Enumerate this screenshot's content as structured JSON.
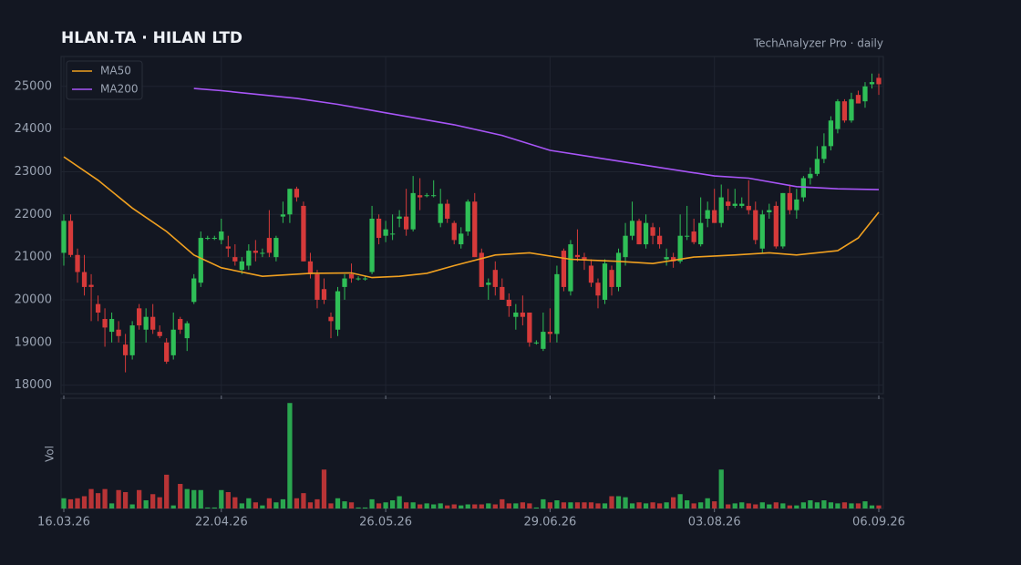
{
  "chart_data": {
    "type": "candlestick",
    "title": "HLAN.TA  ·  HILAN LTD",
    "subtitle": "TechAnalyzer Pro · daily",
    "volume_label": "Vol",
    "up_color": "#2fbf57",
    "down_color": "#d63a3a",
    "xlim": [
      0,
      119
    ],
    "xticks": [
      {
        "value": 0,
        "label": "16.03.26"
      },
      {
        "value": 23,
        "label": "22.04.26"
      },
      {
        "value": 47,
        "label": "26.05.26"
      },
      {
        "value": 71,
        "label": "29.06.26"
      },
      {
        "value": 95,
        "label": "03.08.26"
      },
      {
        "value": 119,
        "label": "06.09.26"
      }
    ],
    "ylim": [
      17800,
      25700
    ],
    "yticks": [
      18000,
      19000,
      20000,
      21000,
      22000,
      23000,
      24000,
      25000
    ],
    "grid": true,
    "legend": "top-left",
    "volume_ylim": [
      0,
      105
    ],
    "ohlc": [
      [
        21100,
        22000,
        20800,
        21850
      ],
      [
        21850,
        22000,
        21000,
        21050
      ],
      [
        21050,
        21200,
        20400,
        20650
      ],
      [
        20650,
        21050,
        20100,
        20300
      ],
      [
        20350,
        20600,
        19500,
        20300
      ],
      [
        19900,
        20100,
        19500,
        19700
      ],
      [
        19550,
        19800,
        18900,
        19350
      ],
      [
        19250,
        19700,
        19000,
        19550
      ],
      [
        19300,
        19500,
        19000,
        19150
      ],
      [
        18950,
        19200,
        18300,
        18700
      ],
      [
        18700,
        19500,
        18600,
        19400
      ],
      [
        19800,
        19900,
        19300,
        19400
      ],
      [
        19300,
        19800,
        19000,
        19600
      ],
      [
        19600,
        19900,
        19200,
        19300
      ],
      [
        19250,
        19400,
        19100,
        19150
      ],
      [
        19000,
        19100,
        18500,
        18550
      ],
      [
        18700,
        19700,
        18600,
        19300
      ],
      [
        19550,
        19600,
        19200,
        19300
      ],
      [
        19100,
        19500,
        18800,
        19450
      ],
      [
        19950,
        20600,
        19900,
        20500
      ],
      [
        20400,
        21600,
        20300,
        21450
      ],
      [
        21450,
        21500,
        21400,
        21450
      ],
      [
        21450,
        21500,
        21400,
        21450
      ],
      [
        21400,
        21900,
        21300,
        21600
      ],
      [
        21250,
        21500,
        21000,
        21200
      ],
      [
        21000,
        21300,
        20800,
        20900
      ],
      [
        20700,
        21000,
        20600,
        20900
      ],
      [
        20800,
        21300,
        20700,
        21150
      ],
      [
        21150,
        21400,
        20900,
        21100
      ],
      [
        21100,
        21200,
        21000,
        21100
      ],
      [
        21450,
        22100,
        21000,
        21100
      ],
      [
        21000,
        21500,
        20900,
        21450
      ],
      [
        21950,
        22300,
        21800,
        22000
      ],
      [
        22000,
        22600,
        21800,
        22600
      ],
      [
        22600,
        22650,
        22300,
        22400
      ],
      [
        22200,
        22300,
        20900,
        20900
      ],
      [
        20900,
        21100,
        20500,
        20600
      ],
      [
        20600,
        20700,
        19800,
        20000
      ],
      [
        20250,
        20500,
        19900,
        20000
      ],
      [
        19600,
        19700,
        19100,
        19500
      ],
      [
        19300,
        20300,
        19150,
        20200
      ],
      [
        20300,
        20600,
        20000,
        20500
      ],
      [
        20600,
        20850,
        20400,
        20500
      ],
      [
        20500,
        20550,
        20450,
        20500
      ],
      [
        20500,
        20550,
        20450,
        20500
      ],
      [
        20650,
        22200,
        20600,
        21900
      ],
      [
        21900,
        22000,
        21300,
        21450
      ],
      [
        21500,
        21850,
        21350,
        21650
      ],
      [
        21550,
        22000,
        21400,
        21550
      ],
      [
        21900,
        22100,
        21700,
        21950
      ],
      [
        21950,
        22600,
        21500,
        21650
      ],
      [
        21650,
        22900,
        21600,
        22500
      ],
      [
        22450,
        22850,
        22100,
        22400
      ],
      [
        22450,
        22500,
        22400,
        22450
      ],
      [
        22450,
        22800,
        22400,
        22450
      ],
      [
        21800,
        22600,
        21700,
        22250
      ],
      [
        22250,
        22350,
        21800,
        21900
      ],
      [
        21800,
        21850,
        21300,
        21400
      ],
      [
        21300,
        21700,
        21200,
        21550
      ],
      [
        21600,
        22350,
        21500,
        22300
      ],
      [
        22300,
        22500,
        21000,
        21000
      ],
      [
        21100,
        21200,
        20300,
        20300
      ],
      [
        20350,
        20500,
        20000,
        20400
      ],
      [
        20700,
        20900,
        20100,
        20300
      ],
      [
        20300,
        20500,
        20000,
        20000
      ],
      [
        20000,
        20150,
        19600,
        19850
      ],
      [
        19600,
        19900,
        19300,
        19700
      ],
      [
        19700,
        20100,
        19400,
        19600
      ],
      [
        19700,
        19700,
        18900,
        19000
      ],
      [
        19000,
        19050,
        18950,
        19000
      ],
      [
        18850,
        19700,
        18800,
        19250
      ],
      [
        19250,
        19800,
        19000,
        19200
      ],
      [
        19200,
        20800,
        19000,
        20600
      ],
      [
        21150,
        21200,
        20200,
        20300
      ],
      [
        20200,
        21400,
        20100,
        21300
      ],
      [
        21050,
        21650,
        20900,
        21000
      ],
      [
        21000,
        21100,
        20700,
        20950
      ],
      [
        20800,
        20950,
        20300,
        20400
      ],
      [
        20400,
        20500,
        19800,
        20100
      ],
      [
        20000,
        20950,
        19900,
        20850
      ],
      [
        20700,
        20800,
        20100,
        20300
      ],
      [
        20300,
        21200,
        20200,
        21100
      ],
      [
        21000,
        21800,
        20800,
        21500
      ],
      [
        21500,
        22300,
        21400,
        21850
      ],
      [
        21850,
        21900,
        21300,
        21300
      ],
      [
        21300,
        22000,
        21200,
        21800
      ],
      [
        21700,
        21800,
        21300,
        21500
      ],
      [
        21500,
        21700,
        21200,
        21300
      ],
      [
        20950,
        21200,
        20800,
        21000
      ],
      [
        21000,
        21100,
        20750,
        20900
      ],
      [
        20900,
        22000,
        20850,
        21500
      ],
      [
        21500,
        22200,
        21400,
        21500
      ],
      [
        21600,
        21900,
        21300,
        21350
      ],
      [
        21300,
        22400,
        21250,
        21800
      ],
      [
        21900,
        22300,
        21700,
        22100
      ],
      [
        22100,
        22600,
        21800,
        21800
      ],
      [
        21800,
        22700,
        21700,
        22400
      ],
      [
        22300,
        22600,
        22100,
        22200
      ],
      [
        22200,
        22600,
        22150,
        22250
      ],
      [
        22200,
        22400,
        22150,
        22250
      ],
      [
        22200,
        22800,
        22000,
        22100
      ],
      [
        22100,
        22300,
        21300,
        21400
      ],
      [
        21200,
        22100,
        21100,
        22000
      ],
      [
        22050,
        22250,
        21900,
        22100
      ],
      [
        22200,
        22300,
        21200,
        21250
      ],
      [
        21250,
        22500,
        21200,
        22500
      ],
      [
        22500,
        22700,
        22000,
        22100
      ],
      [
        22100,
        22600,
        21900,
        22350
      ],
      [
        22400,
        22900,
        22300,
        22850
      ],
      [
        22850,
        23100,
        22700,
        22950
      ],
      [
        22950,
        23600,
        22900,
        23300
      ],
      [
        23300,
        23900,
        23200,
        23600
      ],
      [
        23600,
        24300,
        23500,
        24200
      ],
      [
        24000,
        24700,
        23900,
        24650
      ],
      [
        24650,
        24700,
        24150,
        24200
      ],
      [
        24200,
        24850,
        24150,
        24700
      ],
      [
        24800,
        24900,
        24600,
        24600
      ],
      [
        24650,
        25100,
        24500,
        25000
      ],
      [
        25050,
        25300,
        24950,
        25100
      ],
      [
        25200,
        25300,
        24800,
        25050
      ]
    ],
    "volume": [
      10,
      9,
      10,
      12,
      19,
      15,
      19,
      5,
      18,
      16,
      4,
      18,
      8,
      14,
      11,
      33,
      3,
      24,
      19,
      18,
      18,
      1,
      1,
      18,
      16,
      11,
      5,
      10,
      6,
      3,
      10,
      6,
      9,
      103,
      10,
      15,
      6,
      9,
      38,
      5,
      10,
      7,
      6,
      1,
      1,
      9,
      5,
      6,
      8,
      12,
      6,
      6,
      4,
      5,
      4,
      5,
      3,
      4,
      3,
      4,
      4,
      4,
      5,
      4,
      9,
      5,
      5,
      6,
      5,
      1,
      9,
      6,
      8,
      6,
      6,
      6,
      6,
      6,
      5,
      5,
      12,
      12,
      11,
      5,
      6,
      5,
      6,
      5,
      6,
      11,
      14,
      8,
      5,
      6,
      10,
      7,
      38,
      4,
      5,
      6,
      5,
      4,
      6,
      4,
      6,
      5,
      3,
      3,
      6,
      8,
      6,
      8,
      6,
      5,
      6,
      5,
      5,
      7,
      3,
      3
    ],
    "series": [
      {
        "name": "MA50",
        "color": "#f0a020",
        "x": [
          0,
          5,
          10,
          15,
          19,
          23,
          29,
          36,
          42,
          45,
          49,
          53,
          57,
          63,
          68,
          74,
          81,
          86,
          92,
          98,
          103,
          107,
          113,
          116,
          119
        ],
        "values": [
          23350,
          22800,
          22150,
          21600,
          21050,
          20750,
          20550,
          20620,
          20630,
          20520,
          20550,
          20620,
          20800,
          21050,
          21100,
          20950,
          20900,
          20850,
          21000,
          21050,
          21100,
          21050,
          21150,
          21450,
          22050
        ]
      },
      {
        "name": "MA200",
        "color": "#a855f7",
        "x": [
          19,
          23,
          34,
          40,
          47,
          57,
          64,
          71,
          79,
          87,
          95,
          100,
          107,
          113,
          119
        ],
        "values": [
          24950,
          24900,
          24720,
          24580,
          24380,
          24100,
          23850,
          23500,
          23300,
          23100,
          22900,
          22850,
          22650,
          22600,
          22580
        ]
      }
    ]
  }
}
